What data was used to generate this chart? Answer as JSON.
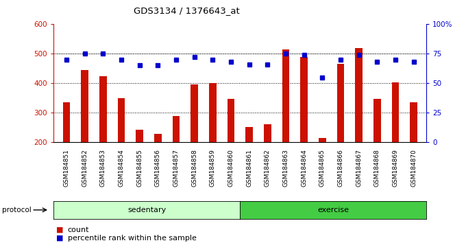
{
  "title": "GDS3134 / 1376643_at",
  "samples": [
    "GSM184851",
    "GSM184852",
    "GSM184853",
    "GSM184854",
    "GSM184855",
    "GSM184856",
    "GSM184857",
    "GSM184858",
    "GSM184859",
    "GSM184860",
    "GSM184861",
    "GSM184862",
    "GSM184863",
    "GSM184864",
    "GSM184865",
    "GSM184866",
    "GSM184867",
    "GSM184868",
    "GSM184869",
    "GSM184870"
  ],
  "bar_values": [
    335,
    445,
    425,
    350,
    242,
    228,
    288,
    396,
    400,
    348,
    252,
    260,
    515,
    490,
    215,
    465,
    520,
    348,
    403,
    335
  ],
  "dot_values": [
    70,
    75,
    75,
    70,
    65,
    65,
    70,
    72,
    70,
    68,
    66,
    66,
    75,
    74,
    55,
    70,
    74,
    68,
    70,
    68
  ],
  "bar_color": "#CC1100",
  "dot_color": "#0000CC",
  "ylim_left": [
    200,
    600
  ],
  "ylim_right": [
    0,
    100
  ],
  "yticks_left": [
    200,
    300,
    400,
    500,
    600
  ],
  "yticks_right": [
    0,
    25,
    50,
    75,
    100
  ],
  "grid_values": [
    300,
    400,
    500
  ],
  "background_color": "#ffffff",
  "legend_count_label": "count",
  "legend_pct_label": "percentile rank within the sample",
  "protocol_label": "protocol",
  "ylabel_right_ticks": [
    "0",
    "25",
    "50",
    "75",
    "100%"
  ],
  "sedentary_color": "#ccffcc",
  "exercise_color": "#44cc44",
  "sedentary_count": 10,
  "exercise_count": 10
}
